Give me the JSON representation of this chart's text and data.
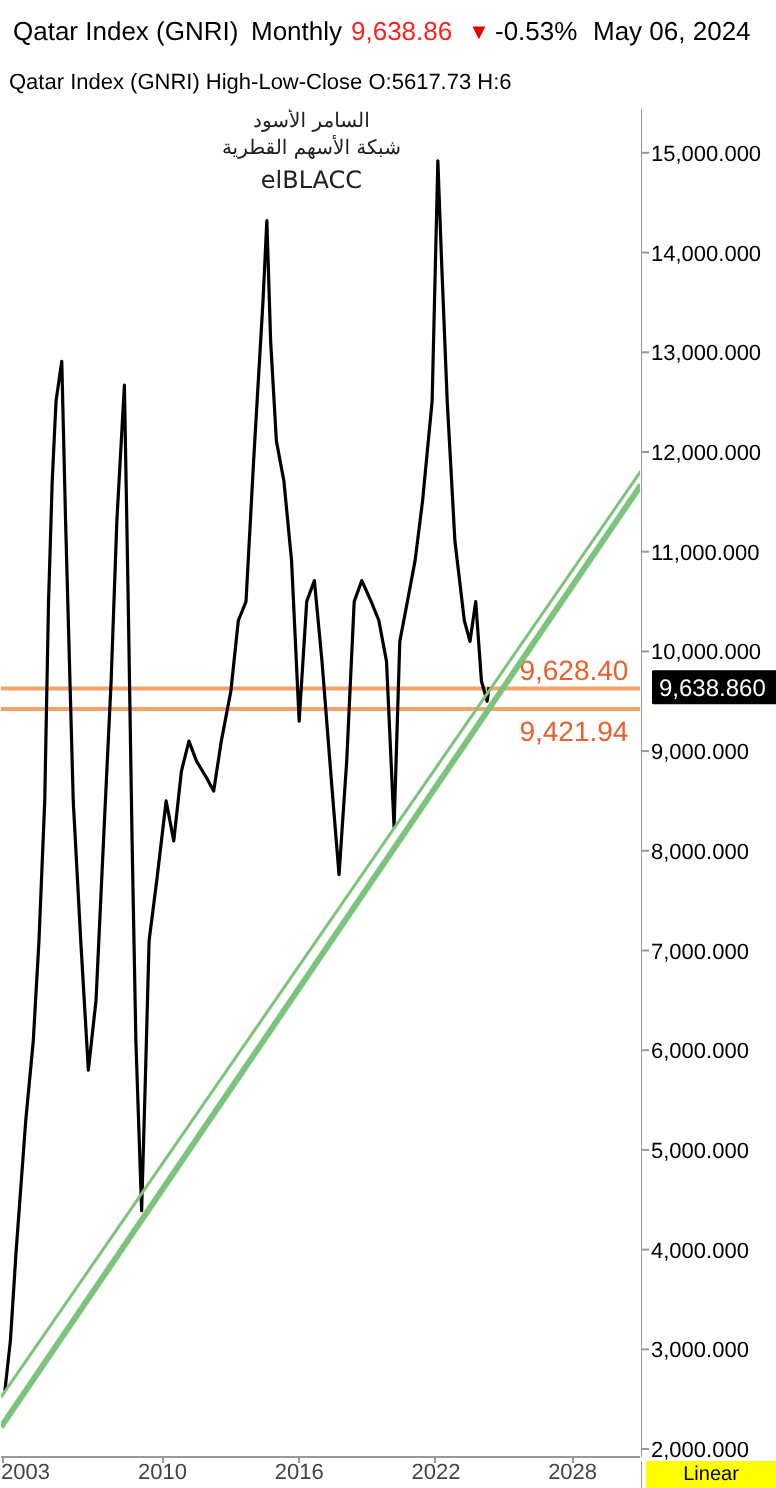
{
  "chart_data": {
    "type": "line",
    "title": "Qatar Index (GNRI)",
    "subtitle": "Monthly",
    "x": [
      "2003-02",
      "2003-05",
      "2003-08",
      "2004-01",
      "2004-05",
      "2004-08",
      "2004-11",
      "2005-01",
      "2005-03",
      "2005-05",
      "2005-08",
      "2005-10",
      "2006-02",
      "2006-06",
      "2006-10",
      "2007-02",
      "2007-06",
      "2007-10",
      "2008-01",
      "2008-05",
      "2008-07",
      "2008-09",
      "2008-11",
      "2009-02",
      "2009-04",
      "2009-06",
      "2009-10",
      "2010-03",
      "2010-07",
      "2010-11",
      "2011-03",
      "2011-07",
      "2011-12",
      "2012-04",
      "2012-08",
      "2013-01",
      "2013-05",
      "2013-09",
      "2014-01",
      "2014-06",
      "2014-08",
      "2014-10",
      "2015-01",
      "2015-05",
      "2015-09",
      "2016-01",
      "2016-05",
      "2016-09",
      "2017-01",
      "2017-06",
      "2017-10",
      "2018-02",
      "2018-06",
      "2018-10",
      "2019-03",
      "2019-07",
      "2019-11",
      "2020-03",
      "2020-06",
      "2020-10",
      "2021-02",
      "2021-06",
      "2021-11",
      "2022-02",
      "2022-04",
      "2022-07",
      "2022-11",
      "2023-04",
      "2023-07",
      "2023-10",
      "2024-01",
      "2024-04",
      "2024-05"
    ],
    "series": [
      {
        "color": "#000000",
        "values": [
          2580,
          3090,
          3990,
          5290,
          6090,
          7100,
          8500,
          10500,
          11710,
          12510,
          12910,
          11310,
          8500,
          7100,
          5800,
          6500,
          8100,
          9700,
          11310,
          12670,
          10500,
          8100,
          6090,
          4390,
          5690,
          7100,
          7700,
          8500,
          8100,
          8800,
          9100,
          8900,
          8740,
          8600,
          9100,
          9600,
          10310,
          10500,
          11910,
          13520,
          14320,
          13110,
          12110,
          11710,
          10910,
          9300,
          10500,
          10710,
          9900,
          8700,
          7760,
          8900,
          10500,
          10710,
          10500,
          10310,
          9900,
          8240,
          10100,
          10500,
          10910,
          11510,
          12510,
          14920,
          13920,
          12510,
          11110,
          10310,
          10100,
          10500,
          9700,
          9500,
          9640
        ]
      },
      {
        "type": "line",
        "color": "#7cc47c",
        "x": [
          "2002-12",
          "2031-01"
        ],
        "values": [
          2220,
          11670
        ]
      },
      {
        "type": "line",
        "color": "#7cc47c",
        "x": [
          "2002-12",
          "2031-01"
        ],
        "values": [
          2520,
          11810
        ]
      }
    ],
    "xlim": [
      "2002-12",
      "2031-01"
    ],
    "ylim": [
      1920,
      15440
    ],
    "xticks": [
      {
        "value": "2003",
        "label": "2003"
      },
      {
        "value": "2010",
        "label": "2010"
      },
      {
        "value": "2016",
        "label": "2016"
      },
      {
        "value": "2022",
        "label": "2022"
      },
      {
        "value": "2028",
        "label": "2028"
      }
    ],
    "yticks": [
      {
        "value": 2000,
        "label": "2,000.000"
      },
      {
        "value": 3000,
        "label": "3,000.000"
      },
      {
        "value": 4000,
        "label": "4,000.000"
      },
      {
        "value": 5000,
        "label": "5,000.000"
      },
      {
        "value": 6000,
        "label": "6,000.000"
      },
      {
        "value": 7000,
        "label": "7,000.000"
      },
      {
        "value": 8000,
        "label": "8,000.000"
      },
      {
        "value": 9000,
        "label": "9,000.000"
      },
      {
        "value": 10000,
        "label": "10,000.000"
      },
      {
        "value": 11000,
        "label": "11,000.000"
      },
      {
        "value": 12000,
        "label": "12,000.000"
      },
      {
        "value": 13000,
        "label": "13,000.000"
      },
      {
        "value": 14000,
        "label": "14,000.000"
      },
      {
        "value": 15000,
        "label": "15,000.000"
      }
    ],
    "ref_lines": [
      {
        "axis": "y",
        "value": 9628.4,
        "label": "9,628.40",
        "color": "#f4a46a"
      },
      {
        "axis": "y",
        "value": 9421.94,
        "label": "9,421.94",
        "color": "#f4a46a"
      }
    ],
    "annotations": [
      "9,638.86",
      "-0.53%",
      "▼",
      "May 06, 2024",
      "Qatar Index (GNRI)  High-Low-Close    O:5617.73   H:6",
      "السامر الأسود",
      "شبكة الأسهم القطرية",
      "elBLACC",
      "Linear",
      "9,638.860"
    ],
    "grid": false,
    "marker": "none",
    "line_style": "solid"
  }
}
